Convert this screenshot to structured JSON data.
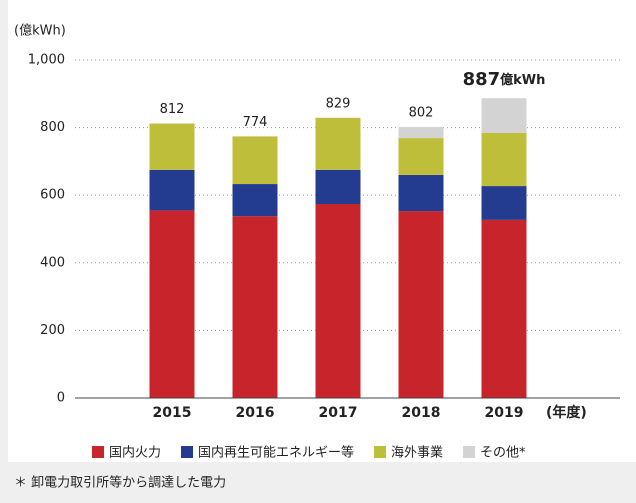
{
  "chart_data": {
    "type": "stacked_bar",
    "y_label": "(億kWh)",
    "x_unit": "(年度)",
    "footnote": "＊ 卸電力取引所等から調達した電力",
    "categories": [
      "2015",
      "2016",
      "2017",
      "2018",
      "2019"
    ],
    "series": [
      {
        "name": "国内火力",
        "color": "#c8242b",
        "values": [
          555,
          538,
          574,
          553,
          527
        ]
      },
      {
        "name": "国内再生可能エネルギー等",
        "color": "#233c8f",
        "values": [
          120,
          95,
          101,
          107,
          100
        ]
      },
      {
        "name": "海外事業",
        "color": "#bfbe3a",
        "values": [
          137,
          141,
          154,
          109,
          157
        ]
      },
      {
        "name": "その他*",
        "color": "#d3d3d3",
        "values": [
          0,
          0,
          0,
          33,
          103
        ]
      }
    ],
    "totals": [
      812,
      774,
      829,
      802,
      887
    ],
    "highlight_unit": "億kWh",
    "ylim": [
      0,
      1000
    ],
    "yticks": [
      0,
      200,
      400,
      600,
      800,
      {
        "value": 1000,
        "label": "1,000"
      }
    ],
    "grid": true
  }
}
